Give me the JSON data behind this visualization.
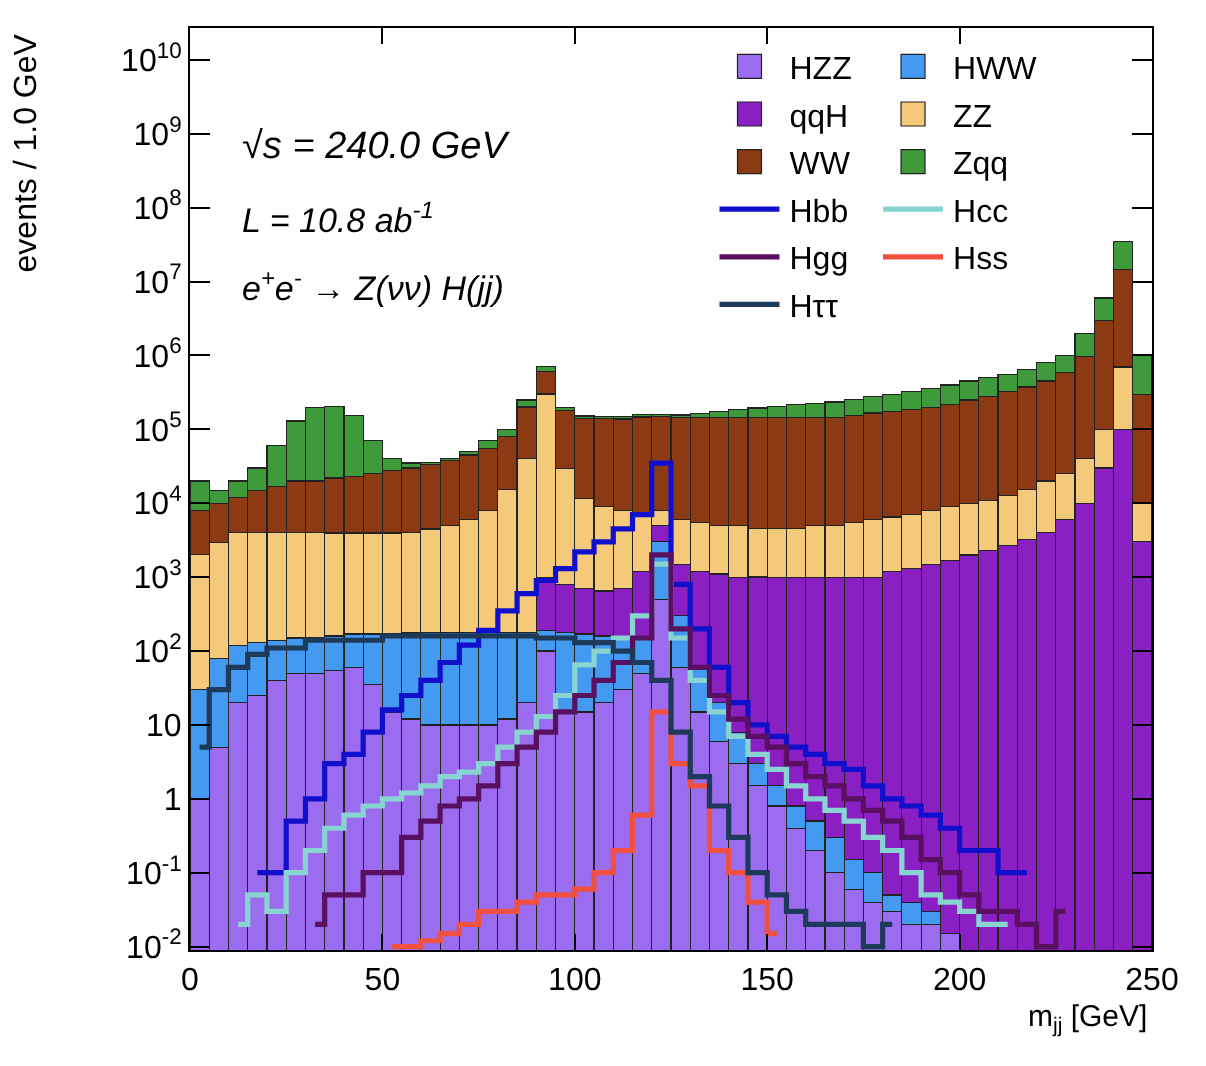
{
  "chart_data": {
    "type": "bar",
    "stacked": true,
    "log": true,
    "grid": false,
    "legend": "top right",
    "xlabel": "m$_{jj}$ [GeV]",
    "ylabel": "events / 1.0 GeV",
    "annotations": [
      "√s = 240.0 GeV",
      "L = 10.8 ab$^{-1}$",
      "e$^{+}$e$^{-}$ → Z(νν) H(jj)"
    ],
    "xlim": [
      0,
      250
    ],
    "xticks": [
      0,
      50,
      100,
      150,
      200,
      250
    ],
    "ylim": [
      0.009,
      27000000000
    ],
    "yticks": [
      {
        "value": 0.01,
        "label": "10$^{-2}$"
      },
      {
        "value": 0.1,
        "label": "10$^{-1}$"
      },
      1,
      10,
      {
        "value": 100,
        "label": "10$^{2}$"
      },
      {
        "value": 1000,
        "label": "10$^{3}$"
      },
      {
        "value": 10000,
        "label": "10$^{4}$"
      },
      {
        "value": 100000,
        "label": "10$^{5}$"
      },
      {
        "value": 1000000,
        "label": "10$^{6}$"
      },
      {
        "value": 10000000,
        "label": "10$^{7}$"
      },
      {
        "value": 100000000,
        "label": "10$^{8}$"
      },
      {
        "value": 1000000000,
        "label": "10$^{9}$"
      },
      {
        "value": 10000000000,
        "label": "10$^{10}$"
      }
    ],
    "x": [
      2.5,
      7.5,
      12.5,
      17.5,
      22.5,
      27.5,
      32.5,
      37.5,
      42.5,
      47.5,
      52.5,
      57.5,
      62.5,
      67.5,
      72.5,
      77.5,
      82.5,
      87.5,
      92.5,
      97.5,
      102.5,
      107.5,
      112.5,
      117.5,
      122.5,
      127.5,
      132.5,
      137.5,
      142.5,
      147.5,
      152.5,
      157.5,
      162.5,
      167.5,
      172.5,
      177.5,
      182.5,
      187.5,
      192.5,
      197.5,
      202.5,
      207.5,
      212.5,
      217.5,
      222.5,
      227.5,
      232.5,
      237.5,
      242.5,
      247.5
    ],
    "series": [
      {
        "name": "HZZ",
        "color": "#9c6cf0",
        "values": [
          1,
          5,
          20,
          25,
          40,
          50,
          50,
          55,
          60,
          35,
          15,
          12,
          10,
          10,
          10,
          10,
          12,
          20,
          100,
          15,
          15,
          20,
          30,
          50,
          500,
          60,
          15,
          6,
          3,
          1.5,
          0.8,
          0.4,
          0.2,
          0.1,
          0.06,
          0.04,
          0.03,
          0.02,
          0.02,
          0.015,
          null,
          null,
          null,
          null,
          null,
          null,
          null,
          null,
          null,
          null
        ]
      },
      {
        "name": "HWW",
        "color": "#4499f0",
        "values": [
          29,
          75,
          100,
          105,
          100,
          100,
          100,
          105,
          110,
          135,
          155,
          163,
          170,
          170,
          170,
          170,
          168,
          160,
          90,
          165,
          155,
          140,
          120,
          100,
          2500,
          240,
          45,
          14,
          5,
          1.5,
          0.7,
          0.4,
          0.3,
          0.2,
          0.09,
          0.06,
          0.02,
          0.02,
          0.01,
          null,
          null,
          null,
          null,
          null,
          null,
          null,
          null,
          null,
          null,
          null
        ]
      },
      {
        "name": "qqH",
        "color": "#8a1fc4",
        "values": [
          null,
          null,
          null,
          null,
          null,
          null,
          null,
          null,
          null,
          null,
          null,
          null,
          null,
          null,
          null,
          null,
          null,
          null,
          810,
          620,
          530,
          490,
          550,
          1050,
          2000,
          1200,
          1140,
          1080,
          990,
          1000,
          1000,
          1000,
          1000,
          1000,
          1000,
          1000,
          1200,
          1300,
          1500,
          1700,
          2000,
          2300,
          2700,
          3200,
          4000,
          6000,
          10000,
          30000,
          100000,
          3000
        ]
      },
      {
        "name": "ZZ",
        "color": "#f5c97a",
        "values": [
          2000,
          2900,
          3900,
          3900,
          3900,
          3900,
          3900,
          3800,
          3800,
          3800,
          3800,
          3800,
          4300,
          4800,
          5800,
          7800,
          15000,
          40000,
          300000,
          29000,
          11000,
          8300,
          7300,
          5800,
          3000,
          4500,
          4300,
          3900,
          4000,
          3500,
          3500,
          3500,
          4000,
          4000,
          4500,
          5000,
          5300,
          5700,
          6500,
          7300,
          8000,
          8700,
          10000,
          12000,
          16000,
          19000,
          30000,
          70000,
          600000,
          7000
        ]
      },
      {
        "name": "WW",
        "color": "#8b3a14",
        "values": [
          6000,
          7000,
          8000,
          11000,
          13000,
          16000,
          16000,
          18000,
          19000,
          21000,
          24000,
          26000,
          29000,
          33000,
          39000,
          47000,
          65000,
          160000,
          300000,
          150000,
          130000,
          130000,
          130000,
          140000,
          140000,
          140000,
          140000,
          140000,
          140000,
          140000,
          140000,
          140000,
          140000,
          140000,
          150000,
          160000,
          170000,
          180000,
          190000,
          210000,
          240000,
          270000,
          310000,
          360000,
          430000,
          570000,
          930000,
          2900000,
          14000000,
          290000
        ]
      },
      {
        "name": "Zqq",
        "color": "#3f9a3c",
        "values": [
          12000,
          5000,
          8000,
          15000,
          43000,
          110000,
          180000,
          180000,
          130000,
          45000,
          12000,
          5000,
          2000,
          2000,
          5000,
          15000,
          20000,
          50000,
          100000,
          20000,
          10000,
          10000,
          10000,
          10000,
          10000,
          10000,
          20000,
          30000,
          40000,
          50000,
          60000,
          70000,
          80000,
          90000,
          100000,
          110000,
          120000,
          140000,
          160000,
          180000,
          200000,
          220000,
          230000,
          270000,
          350000,
          400000,
          1000000,
          3000000,
          20000000,
          700000
        ]
      },
      {
        "name": "Hbb",
        "type": "step",
        "color": "#1010cc",
        "values": [
          null,
          null,
          null,
          0.1,
          0.1,
          0.5,
          1,
          3,
          4,
          8,
          16,
          25,
          40,
          70,
          120,
          190,
          350,
          600,
          900,
          1300,
          2200,
          3000,
          4500,
          7000,
          35000,
          800,
          200,
          60,
          20,
          10,
          7,
          5,
          4,
          3,
          2.5,
          1.5,
          1,
          0.8,
          0.6,
          0.4,
          0.2,
          0.2,
          0.1,
          0.1,
          null,
          null,
          null,
          null,
          null,
          null
        ]
      },
      {
        "name": "Hcc",
        "type": "step",
        "color": "#88d4d0",
        "values": [
          null,
          null,
          0.02,
          0.05,
          0.03,
          0.1,
          0.2,
          0.4,
          0.6,
          0.8,
          1,
          1.2,
          1.5,
          2,
          2.3,
          3,
          5,
          8,
          13,
          25,
          65,
          100,
          150,
          300,
          1500,
          150,
          40,
          15,
          7,
          4,
          2.5,
          1.5,
          1,
          0.7,
          0.5,
          0.3,
          0.2,
          0.1,
          0.05,
          0.04,
          0.03,
          0.02,
          0.02,
          null,
          null,
          null,
          null,
          null,
          null,
          null
        ]
      },
      {
        "name": "Hgg",
        "type": "step",
        "color": "#5a1060",
        "values": [
          null,
          null,
          null,
          null,
          null,
          null,
          0.02,
          0.05,
          0.05,
          0.1,
          0.1,
          0.3,
          0.5,
          0.8,
          1,
          1.5,
          3,
          5,
          8,
          15,
          25,
          40,
          70,
          150,
          2000,
          200,
          60,
          25,
          12,
          7,
          5,
          3,
          2,
          1.5,
          1,
          0.7,
          0.5,
          0.3,
          0.15,
          0.1,
          0.05,
          0.03,
          0.03,
          0.02,
          0.01,
          0.03,
          null,
          null,
          null,
          null
        ]
      },
      {
        "name": "Hss",
        "type": "step",
        "color": "#f05040",
        "values": [
          null,
          null,
          null,
          null,
          null,
          null,
          null,
          null,
          null,
          null,
          0.01,
          0.01,
          0.012,
          0.015,
          0.02,
          0.03,
          0.03,
          0.04,
          0.05,
          0.05,
          0.06,
          0.1,
          0.2,
          0.6,
          15,
          3,
          1.5,
          0.2,
          0.1,
          0.04,
          0.015,
          null,
          null,
          null,
          null,
          null,
          null,
          null,
          null,
          null,
          null,
          null,
          null,
          null,
          null,
          null,
          null,
          null,
          null,
          null
        ]
      },
      {
        "name": "Hττ",
        "type": "step",
        "color": "#1e3a5a",
        "values": [
          5,
          30,
          60,
          90,
          110,
          110,
          140,
          140,
          140,
          140,
          160,
          160,
          160,
          160,
          160,
          160,
          160,
          160,
          150,
          150,
          130,
          130,
          100,
          70,
          40,
          8,
          2,
          0.8,
          0.3,
          0.1,
          0.05,
          0.03,
          0.02,
          0.02,
          0.02,
          0.01,
          0.02,
          null,
          null,
          null,
          null,
          null,
          null,
          null,
          null,
          null,
          null,
          null,
          null,
          null
        ]
      }
    ]
  }
}
